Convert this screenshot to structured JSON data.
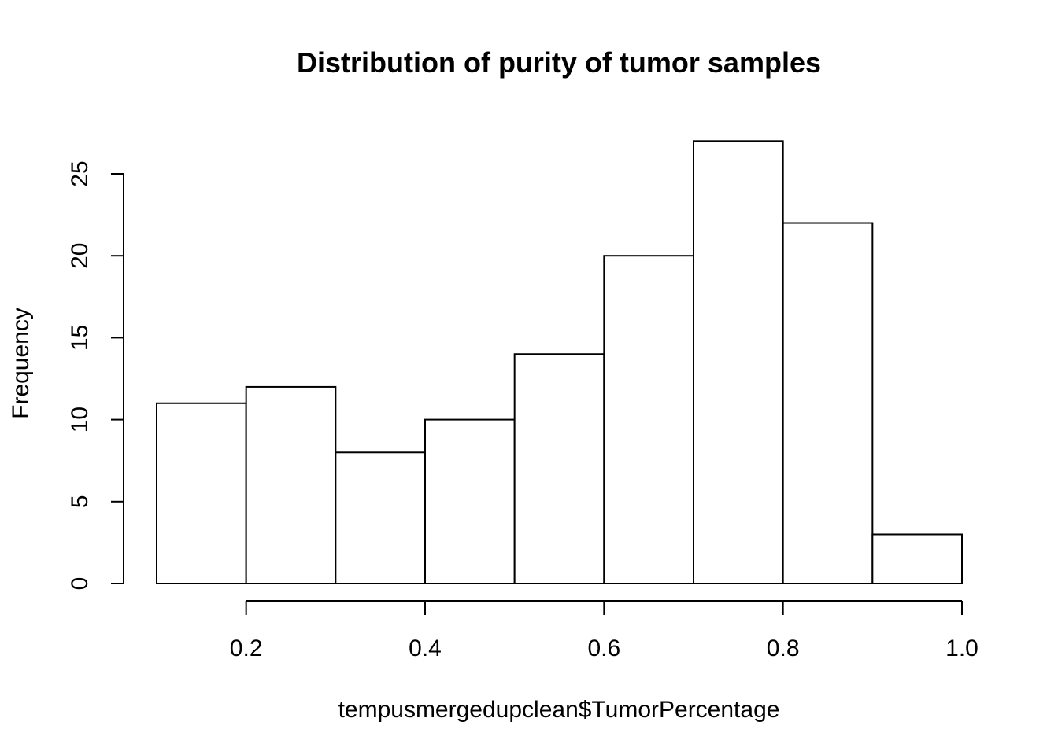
{
  "chart_data": {
    "type": "bar",
    "title": "Distribution of purity of tumor samples",
    "xlabel": "tempusmergedupclean$TumorPercentage",
    "ylabel": "Frequency",
    "bins": [
      {
        "start": 0.1,
        "end": 0.2,
        "count": 11
      },
      {
        "start": 0.2,
        "end": 0.3,
        "count": 12
      },
      {
        "start": 0.3,
        "end": 0.4,
        "count": 8
      },
      {
        "start": 0.4,
        "end": 0.5,
        "count": 10
      },
      {
        "start": 0.5,
        "end": 0.6,
        "count": 14
      },
      {
        "start": 0.6,
        "end": 0.7,
        "count": 20
      },
      {
        "start": 0.7,
        "end": 0.8,
        "count": 27
      },
      {
        "start": 0.8,
        "end": 0.9,
        "count": 22
      },
      {
        "start": 0.9,
        "end": 1.0,
        "count": 3
      }
    ],
    "xticks": [
      {
        "value": 0.2,
        "label": "0.2"
      },
      {
        "value": 0.4,
        "label": "0.4"
      },
      {
        "value": 0.6,
        "label": "0.6"
      },
      {
        "value": 0.8,
        "label": "0.8"
      },
      {
        "value": 1.0,
        "label": "1.0"
      }
    ],
    "yticks": [
      {
        "value": 0,
        "label": "0"
      },
      {
        "value": 5,
        "label": "5"
      },
      {
        "value": 10,
        "label": "10"
      },
      {
        "value": 15,
        "label": "15"
      },
      {
        "value": 20,
        "label": "20"
      },
      {
        "value": 25,
        "label": "25"
      }
    ],
    "grid": false,
    "legend": "none"
  }
}
